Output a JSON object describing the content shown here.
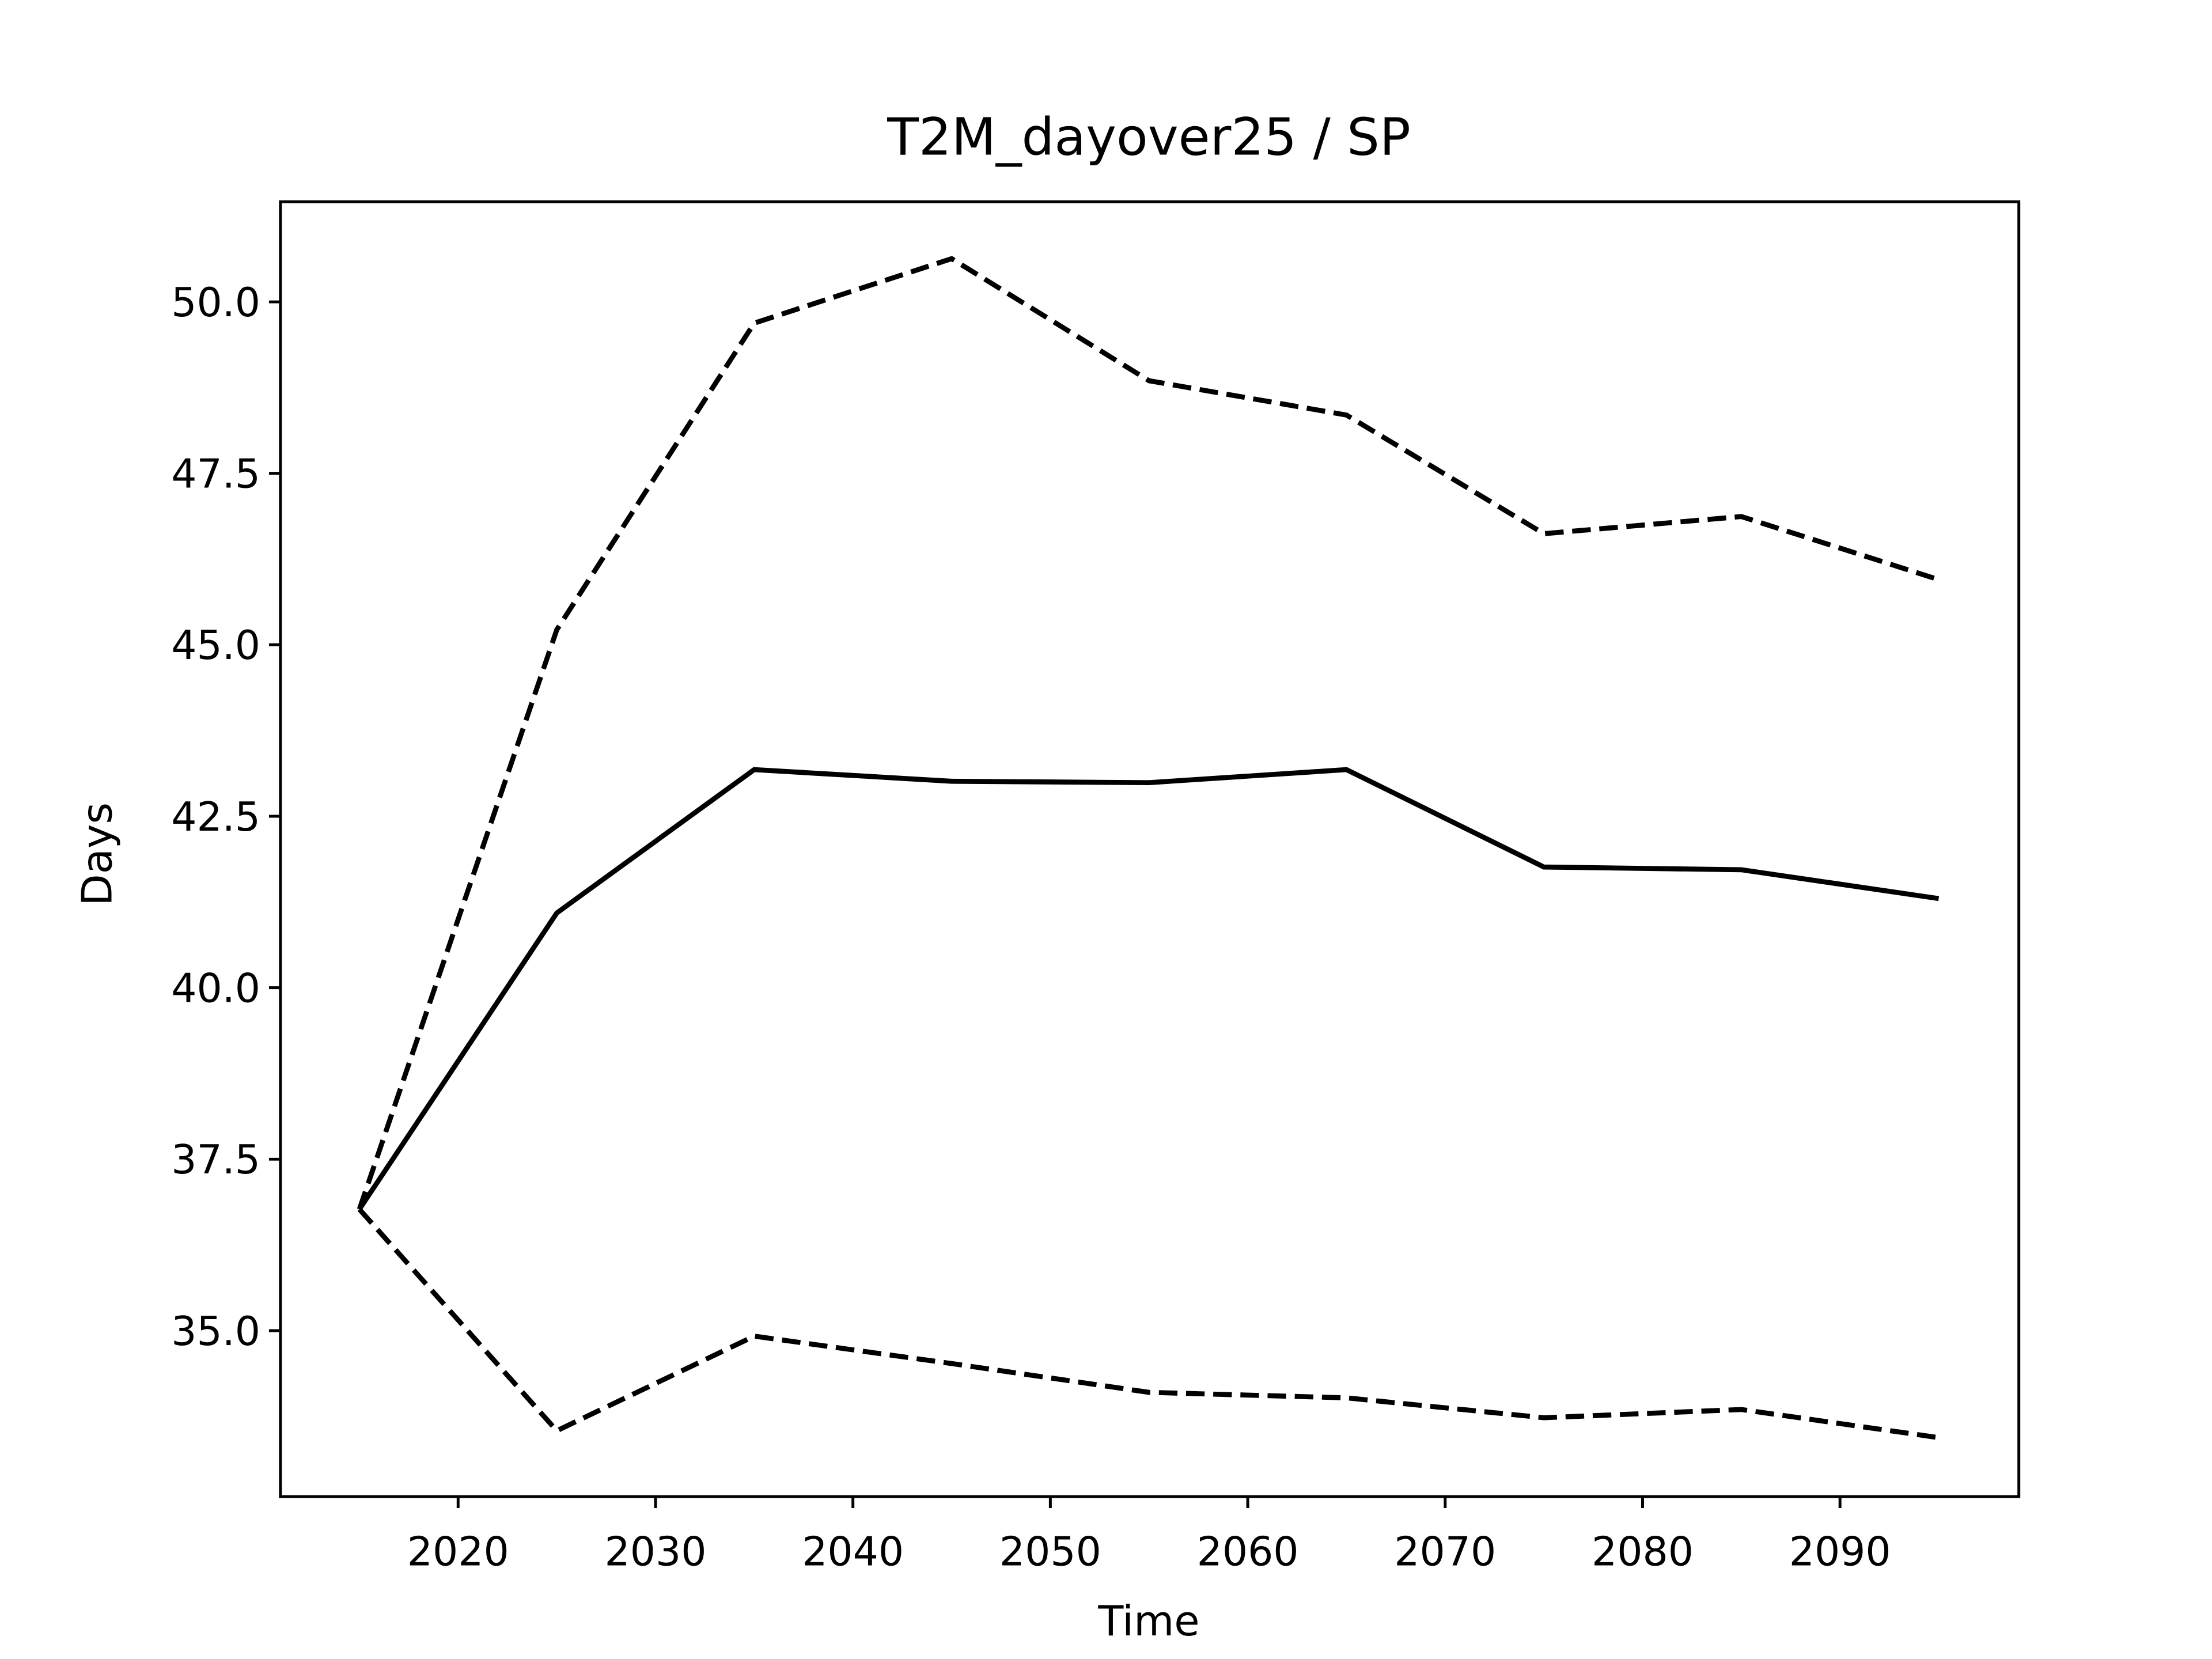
{
  "chart_data": {
    "type": "line",
    "title": "T2M_dayover25 / SP",
    "x_label": "Time",
    "y_label": "Days",
    "x": [
      2015,
      2025,
      2035,
      2045,
      2055,
      2065,
      2075,
      2085,
      2095
    ],
    "series": [
      {
        "color": "#000000",
        "dash": "solid",
        "values": [
          36.77,
          41.09,
          43.18,
          43.01,
          42.99,
          43.18,
          41.76,
          41.72,
          41.3
        ]
      },
      {
        "color": "#000000",
        "dash": "dashed",
        "values": [
          36.77,
          45.22,
          49.69,
          50.63,
          48.85,
          48.35,
          46.62,
          46.87,
          45.95
        ]
      },
      {
        "color": "#000000",
        "dash": "dashed",
        "values": [
          36.77,
          33.54,
          34.92,
          34.52,
          34.1,
          34.02,
          33.73,
          33.85,
          33.44
        ]
      }
    ],
    "xlim": [
      2011.0,
      2099.06
    ],
    "xticks": [
      2020,
      2030,
      2040,
      2050,
      2060,
      2070,
      2080,
      2090
    ],
    "ylim": [
      32.58,
      51.46
    ],
    "yticks": [
      {
        "value": 35,
        "label": "35.0"
      },
      37.5,
      {
        "value": 40,
        "label": "40.0"
      },
      42.5,
      {
        "value": 45,
        "label": "45.0"
      },
      47.5,
      {
        "value": 50,
        "label": "50.0"
      }
    ],
    "grid": false
  }
}
